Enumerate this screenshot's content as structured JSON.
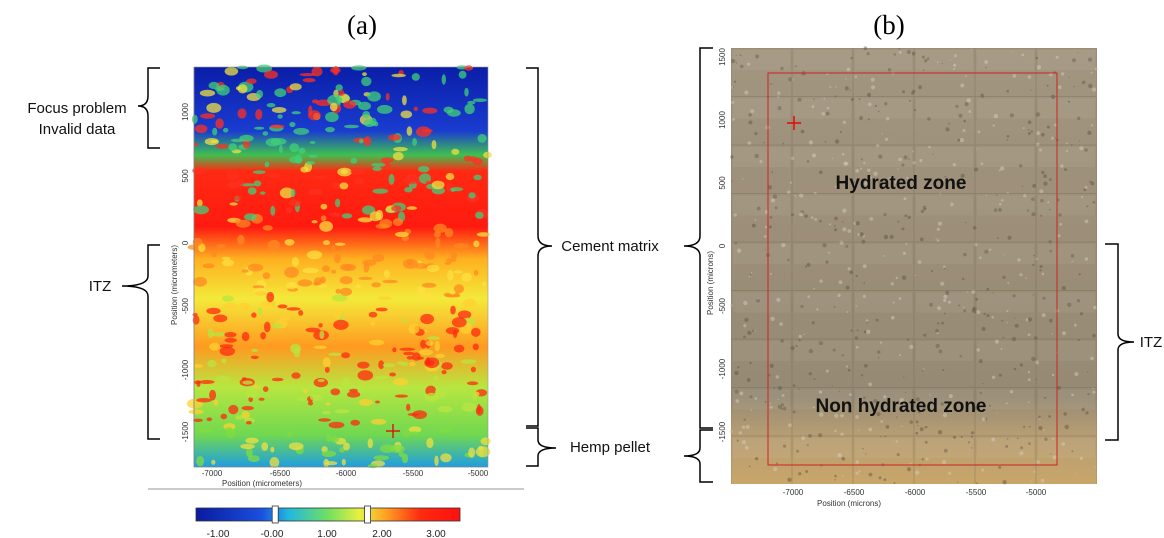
{
  "panels": {
    "a": {
      "letter": "(a)",
      "xlabel": "Position (micrometers)",
      "ylabel": "Position (micrometers)",
      "x_ticks": [
        "-7000",
        "-6500",
        "-6000",
        "-5500",
        "-5000"
      ],
      "y_ticks": [
        "1000",
        "500",
        "0",
        "-500",
        "-1000",
        "-1500"
      ],
      "colorbar": {
        "ticks": [
          "-1.00",
          "-0.00",
          "1.00",
          "2.00",
          "3.00"
        ],
        "range": [
          -1.5,
          3.5
        ],
        "handles": [
          -0.0,
          1.75
        ]
      },
      "annotations": {
        "focus_line1": "Focus problem",
        "focus_line2": "Invalid data",
        "itz": "ITZ",
        "cement": "Cement matrix",
        "hemp": "Hemp pellet"
      }
    },
    "b": {
      "letter": "(b)",
      "xlabel": "Position (microns)",
      "ylabel": "Position (microns)",
      "x_ticks": [
        "-7000",
        "-6500",
        "-6000",
        "-5500",
        "-5000"
      ],
      "y_ticks": [
        "1500",
        "1000",
        "500",
        "0",
        "-500",
        "-1000",
        "-1500"
      ],
      "zone_hydrated": "Hydrated zone",
      "zone_non_hydrated": "Non hydrated zone",
      "itz": "ITZ"
    }
  },
  "colors": {
    "map_low": "#0a1ea8",
    "map_mid": "#7fdc3a",
    "map_high": "#ff1a10",
    "marker": "#e01010",
    "roi_rect": "#d42020"
  }
}
